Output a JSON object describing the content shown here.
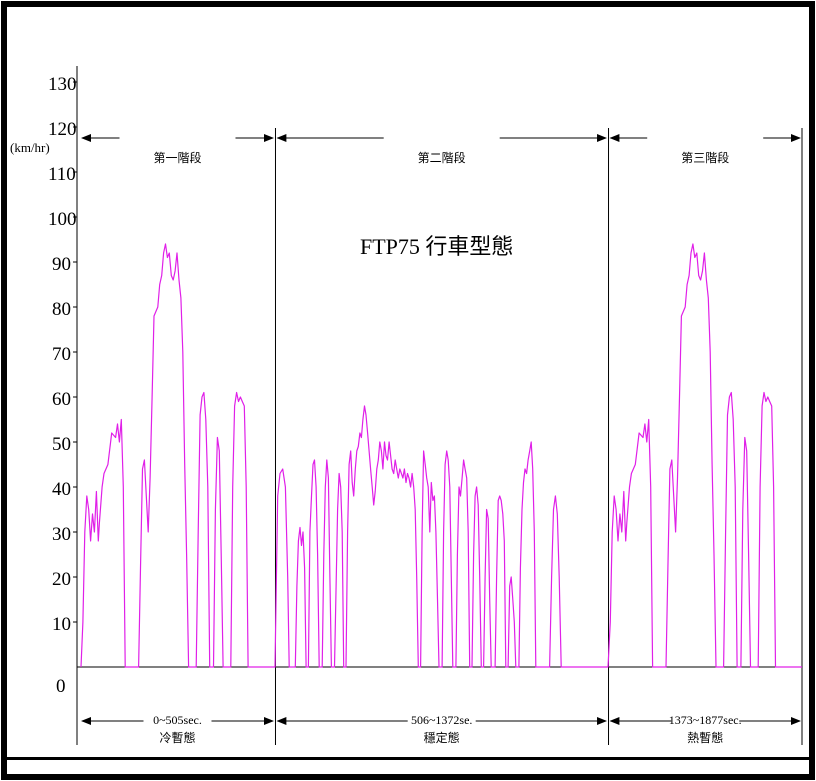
{
  "chart_data": {
    "type": "line",
    "title": "FTP75 行車型態",
    "ylabel": "(km/hr)",
    "xlabel": "",
    "xlim": [
      0,
      1877
    ],
    "ylim": [
      0,
      130
    ],
    "grid": false,
    "yticks": [
      {
        "value": 130,
        "label": "130"
      },
      {
        "value": 120,
        "label": "120"
      },
      {
        "value": 110,
        "label": "110"
      },
      {
        "value": 100,
        "label": "100"
      },
      {
        "value": 90,
        "label": "90"
      },
      {
        "value": 80,
        "label": "80"
      },
      {
        "value": 70,
        "label": "70"
      },
      {
        "value": 60,
        "label": "60"
      },
      {
        "value": 50,
        "label": "50"
      },
      {
        "value": 40,
        "label": "40"
      },
      {
        "value": 30,
        "label": "30"
      },
      {
        "value": 20,
        "label": "20"
      },
      {
        "value": 10,
        "label": "10"
      },
      {
        "value": 0,
        "label": "0"
      }
    ],
    "phases": [
      {
        "name": "第一階段",
        "range": "0~505sec.",
        "state": "冷暫態",
        "start": 0,
        "end": 505
      },
      {
        "name": "第二階段",
        "range": "506~1372se.",
        "state": "穩定態",
        "start": 506,
        "end": 1372
      },
      {
        "name": "第三階段",
        "range": "1373~1877sec.",
        "state": "熱暫態",
        "start": 1373,
        "end": 1877
      }
    ],
    "series": [
      {
        "color": "#e020e8",
        "points": [
          [
            0,
            0
          ],
          [
            5,
            10
          ],
          [
            10,
            30
          ],
          [
            15,
            38
          ],
          [
            20,
            35
          ],
          [
            25,
            28
          ],
          [
            30,
            34
          ],
          [
            35,
            30
          ],
          [
            40,
            39
          ],
          [
            45,
            28
          ],
          [
            48,
            32
          ],
          [
            55,
            40
          ],
          [
            60,
            43
          ],
          [
            70,
            45
          ],
          [
            80,
            52
          ],
          [
            90,
            51
          ],
          [
            95,
            54
          ],
          [
            100,
            50
          ],
          [
            105,
            55
          ],
          [
            110,
            40
          ],
          [
            115,
            0
          ],
          [
            150,
            0
          ],
          [
            155,
            22
          ],
          [
            160,
            44
          ],
          [
            165,
            46
          ],
          [
            170,
            38
          ],
          [
            175,
            30
          ],
          [
            180,
            42
          ],
          [
            185,
            60
          ],
          [
            190,
            78
          ],
          [
            195,
            79
          ],
          [
            200,
            80
          ],
          [
            205,
            85
          ],
          [
            210,
            87
          ],
          [
            215,
            92
          ],
          [
            220,
            94
          ],
          [
            225,
            91
          ],
          [
            230,
            92
          ],
          [
            235,
            87
          ],
          [
            240,
            86
          ],
          [
            245,
            88
          ],
          [
            250,
            92
          ],
          [
            255,
            86
          ],
          [
            260,
            82
          ],
          [
            265,
            70
          ],
          [
            270,
            45
          ],
          [
            275,
            25
          ],
          [
            280,
            0
          ],
          [
            300,
            0
          ],
          [
            305,
            30
          ],
          [
            310,
            56
          ],
          [
            315,
            60
          ],
          [
            320,
            61
          ],
          [
            325,
            55
          ],
          [
            330,
            40
          ],
          [
            335,
            0
          ],
          [
            345,
            0
          ],
          [
            350,
            35
          ],
          [
            355,
            51
          ],
          [
            360,
            48
          ],
          [
            365,
            25
          ],
          [
            370,
            0
          ],
          [
            390,
            0
          ],
          [
            395,
            40
          ],
          [
            400,
            58
          ],
          [
            405,
            61
          ],
          [
            410,
            59
          ],
          [
            415,
            60
          ],
          [
            420,
            59
          ],
          [
            425,
            58
          ],
          [
            430,
            40
          ],
          [
            435,
            0
          ],
          [
            505,
            0
          ],
          [
            512,
            38
          ],
          [
            518,
            43
          ],
          [
            525,
            44
          ],
          [
            532,
            40
          ],
          [
            538,
            20
          ],
          [
            542,
            0
          ],
          [
            558,
            0
          ],
          [
            562,
            18
          ],
          [
            566,
            28
          ],
          [
            570,
            31
          ],
          [
            574,
            27
          ],
          [
            578,
            30
          ],
          [
            582,
            22
          ],
          [
            586,
            0
          ],
          [
            592,
            0
          ],
          [
            596,
            30
          ],
          [
            600,
            38
          ],
          [
            604,
            45
          ],
          [
            608,
            46
          ],
          [
            612,
            40
          ],
          [
            616,
            25
          ],
          [
            620,
            0
          ],
          [
            628,
            0
          ],
          [
            632,
            25
          ],
          [
            636,
            40
          ],
          [
            640,
            46
          ],
          [
            644,
            42
          ],
          [
            648,
            20
          ],
          [
            652,
            0
          ],
          [
            660,
            0
          ],
          [
            664,
            18
          ],
          [
            668,
            35
          ],
          [
            672,
            43
          ],
          [
            676,
            40
          ],
          [
            680,
            30
          ],
          [
            684,
            0
          ],
          [
            690,
            0
          ],
          [
            694,
            30
          ],
          [
            698,
            45
          ],
          [
            702,
            48
          ],
          [
            706,
            41
          ],
          [
            710,
            38
          ],
          [
            714,
            44
          ],
          [
            718,
            48
          ],
          [
            722,
            49
          ],
          [
            726,
            52
          ],
          [
            730,
            51
          ],
          [
            734,
            55
          ],
          [
            738,
            58
          ],
          [
            742,
            56
          ],
          [
            746,
            52
          ],
          [
            750,
            48
          ],
          [
            754,
            44
          ],
          [
            758,
            40
          ],
          [
            762,
            36
          ],
          [
            766,
            39
          ],
          [
            770,
            44
          ],
          [
            774,
            46
          ],
          [
            778,
            50
          ],
          [
            782,
            48
          ],
          [
            786,
            44
          ],
          [
            790,
            50
          ],
          [
            794,
            47
          ],
          [
            798,
            46
          ],
          [
            802,
            50
          ],
          [
            806,
            47
          ],
          [
            810,
            44
          ],
          [
            814,
            43
          ],
          [
            818,
            46
          ],
          [
            822,
            44
          ],
          [
            826,
            42
          ],
          [
            830,
            44
          ],
          [
            834,
            43
          ],
          [
            838,
            42
          ],
          [
            842,
            44
          ],
          [
            846,
            41
          ],
          [
            850,
            43
          ],
          [
            854,
            42
          ],
          [
            858,
            40
          ],
          [
            862,
            43
          ],
          [
            866,
            40
          ],
          [
            870,
            35
          ],
          [
            874,
            20
          ],
          [
            878,
            0
          ],
          [
            884,
            0
          ],
          [
            888,
            30
          ],
          [
            892,
            48
          ],
          [
            896,
            45
          ],
          [
            900,
            42
          ],
          [
            904,
            40
          ],
          [
            908,
            30
          ],
          [
            912,
            41
          ],
          [
            916,
            37
          ],
          [
            920,
            38
          ],
          [
            924,
            30
          ],
          [
            928,
            15
          ],
          [
            932,
            0
          ],
          [
            940,
            0
          ],
          [
            944,
            30
          ],
          [
            948,
            45
          ],
          [
            952,
            48
          ],
          [
            956,
            46
          ],
          [
            960,
            40
          ],
          [
            964,
            20
          ],
          [
            968,
            0
          ],
          [
            976,
            0
          ],
          [
            980,
            25
          ],
          [
            984,
            40
          ],
          [
            988,
            38
          ],
          [
            992,
            42
          ],
          [
            996,
            46
          ],
          [
            1000,
            44
          ],
          [
            1004,
            42
          ],
          [
            1008,
            30
          ],
          [
            1012,
            0
          ],
          [
            1018,
            0
          ],
          [
            1022,
            25
          ],
          [
            1026,
            38
          ],
          [
            1030,
            40
          ],
          [
            1034,
            36
          ],
          [
            1038,
            20
          ],
          [
            1042,
            0
          ],
          [
            1048,
            0
          ],
          [
            1052,
            20
          ],
          [
            1056,
            35
          ],
          [
            1060,
            33
          ],
          [
            1064,
            15
          ],
          [
            1068,
            0
          ],
          [
            1078,
            0
          ],
          [
            1082,
            20
          ],
          [
            1086,
            37
          ],
          [
            1090,
            38
          ],
          [
            1094,
            37
          ],
          [
            1098,
            34
          ],
          [
            1102,
            28
          ],
          [
            1106,
            0
          ],
          [
            1112,
            0
          ],
          [
            1116,
            18
          ],
          [
            1120,
            20
          ],
          [
            1124,
            15
          ],
          [
            1128,
            10
          ],
          [
            1132,
            0
          ],
          [
            1140,
            0
          ],
          [
            1144,
            22
          ],
          [
            1148,
            35
          ],
          [
            1152,
            41
          ],
          [
            1156,
            44
          ],
          [
            1160,
            43
          ],
          [
            1164,
            46
          ],
          [
            1168,
            48
          ],
          [
            1172,
            50
          ],
          [
            1176,
            44
          ],
          [
            1180,
            30
          ],
          [
            1184,
            0
          ],
          [
            1220,
            0
          ],
          [
            1225,
            20
          ],
          [
            1230,
            35
          ],
          [
            1235,
            38
          ],
          [
            1240,
            34
          ],
          [
            1245,
            20
          ],
          [
            1250,
            0
          ],
          [
            1372,
            0
          ],
          [
            1378,
            10
          ],
          [
            1383,
            30
          ],
          [
            1388,
            38
          ],
          [
            1393,
            35
          ],
          [
            1398,
            28
          ],
          [
            1403,
            34
          ],
          [
            1408,
            30
          ],
          [
            1413,
            39
          ],
          [
            1418,
            28
          ],
          [
            1421,
            32
          ],
          [
            1428,
            40
          ],
          [
            1433,
            43
          ],
          [
            1443,
            45
          ],
          [
            1453,
            52
          ],
          [
            1463,
            51
          ],
          [
            1468,
            54
          ],
          [
            1473,
            50
          ],
          [
            1478,
            55
          ],
          [
            1483,
            40
          ],
          [
            1488,
            0
          ],
          [
            1523,
            0
          ],
          [
            1528,
            22
          ],
          [
            1533,
            44
          ],
          [
            1538,
            46
          ],
          [
            1543,
            38
          ],
          [
            1548,
            30
          ],
          [
            1553,
            42
          ],
          [
            1558,
            60
          ],
          [
            1563,
            78
          ],
          [
            1568,
            79
          ],
          [
            1573,
            80
          ],
          [
            1578,
            85
          ],
          [
            1583,
            87
          ],
          [
            1588,
            92
          ],
          [
            1593,
            94
          ],
          [
            1598,
            91
          ],
          [
            1603,
            92
          ],
          [
            1608,
            87
          ],
          [
            1613,
            86
          ],
          [
            1618,
            88
          ],
          [
            1623,
            92
          ],
          [
            1628,
            86
          ],
          [
            1633,
            82
          ],
          [
            1638,
            70
          ],
          [
            1643,
            45
          ],
          [
            1648,
            25
          ],
          [
            1653,
            0
          ],
          [
            1673,
            0
          ],
          [
            1678,
            30
          ],
          [
            1683,
            56
          ],
          [
            1688,
            60
          ],
          [
            1693,
            61
          ],
          [
            1698,
            55
          ],
          [
            1703,
            40
          ],
          [
            1708,
            0
          ],
          [
            1718,
            0
          ],
          [
            1723,
            35
          ],
          [
            1728,
            51
          ],
          [
            1733,
            48
          ],
          [
            1738,
            25
          ],
          [
            1743,
            0
          ],
          [
            1763,
            0
          ],
          [
            1768,
            40
          ],
          [
            1773,
            58
          ],
          [
            1778,
            61
          ],
          [
            1783,
            59
          ],
          [
            1788,
            60
          ],
          [
            1793,
            59
          ],
          [
            1798,
            58
          ],
          [
            1803,
            40
          ],
          [
            1808,
            0
          ],
          [
            1877,
            0
          ]
        ]
      }
    ]
  }
}
